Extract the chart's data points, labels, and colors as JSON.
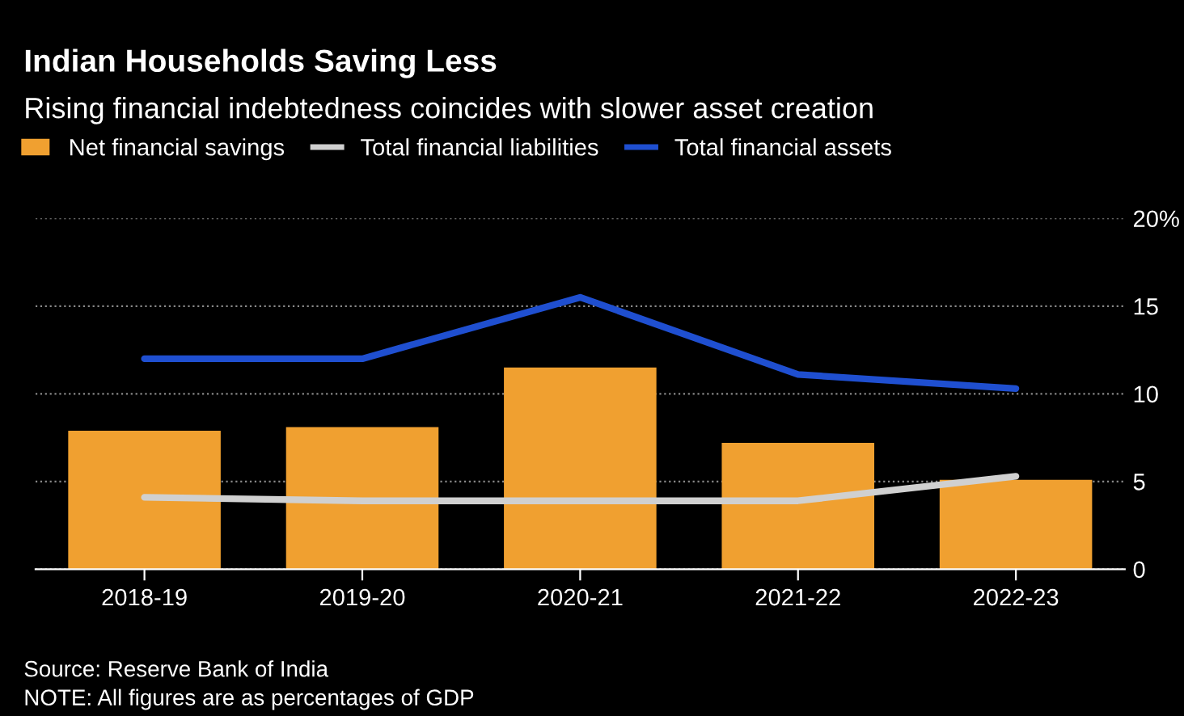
{
  "chart_data": {
    "type": "bar",
    "title": "Indian Households Saving Less",
    "subtitle": "Rising financial indebtedness coincides with slower asset creation",
    "categories": [
      "2018-19",
      "2019-20",
      "2020-21",
      "2021-22",
      "2022-23"
    ],
    "series": [
      {
        "name": "Net financial savings",
        "color": "#f0a030",
        "values": [
          7.9,
          8.1,
          11.5,
          7.2,
          5.1
        ]
      },
      {
        "name": "Total financial liabilities",
        "type": "line",
        "color": "#d0d0d0",
        "values": [
          4.1,
          3.9,
          3.9,
          3.9,
          5.3
        ]
      },
      {
        "name": "Total financial assets",
        "type": "line",
        "color": "#1f4fd0",
        "values": [
          12.0,
          12.0,
          15.5,
          11.1,
          10.3
        ]
      }
    ],
    "ylim": [
      0,
      20
    ],
    "yticks": [
      0,
      5,
      10,
      15,
      {
        "value": 20,
        "label": "20%"
      }
    ],
    "grid": "y",
    "legend": "top left",
    "annotations": [
      "Source: Reserve Bank of India",
      "NOTE: All figures are as percentages of GDP"
    ]
  }
}
